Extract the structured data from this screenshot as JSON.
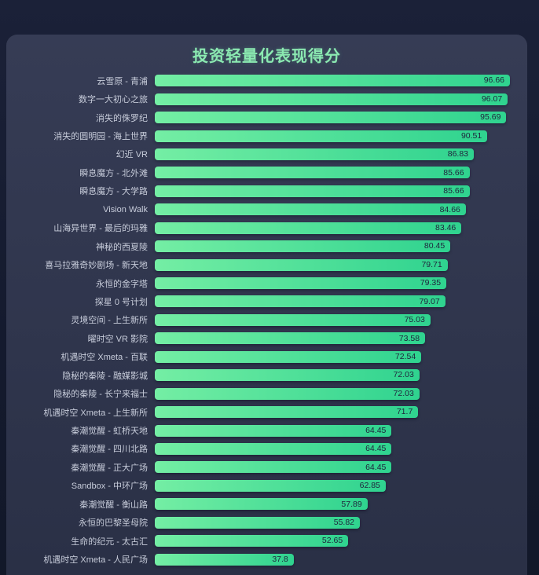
{
  "page": {
    "title": "投资轻量化表现得分"
  },
  "colors": {
    "outer_bg": "#141a2e",
    "panel_bg_top": "#363c55",
    "panel_bg_bottom": "#2a3046",
    "title_color": "#8be9b1",
    "bar_start": "#74eea4",
    "bar_end": "#2fd38f",
    "label_color": "#c7ccda",
    "value_color": "#20263d"
  },
  "chart_data": {
    "type": "bar",
    "orientation": "horizontal",
    "title": "投资轻量化表现得分",
    "xlabel": "",
    "ylabel": "",
    "xlim": [
      0,
      100
    ],
    "grid": false,
    "legend": false,
    "axis_visible": false,
    "value_label_position": "inside-right",
    "sort_order": "descending",
    "categories": [
      "云雪原 - 青浦",
      "数字一大初心之旅",
      "消失的侏罗纪",
      "消失的圆明园 - 海上世界",
      "幻近 VR",
      "瞬息魔方 - 北外滩",
      "瞬息魔方 - 大学路",
      "Vision Walk",
      "山海异世界 - 最后的玛雅",
      "神秘的西夏陵",
      "喜马拉雅奇妙剧场 - 新天地",
      "永恒的金字塔",
      "探星 0 号计划",
      "灵境空间 - 上生新所",
      "曜时空 VR 影院",
      "机遇时空 Xmeta - 百联",
      "隐秘的秦陵 - 融媒影城",
      "隐秘的秦陵 - 长宁来福士",
      "机遇时空 Xmeta - 上生新所",
      "秦潮觉醒 - 虹桥天地",
      "秦潮觉醒 - 四川北路",
      "秦潮觉醒 - 正大广场",
      "Sandbox - 中环广场",
      "秦潮觉醒 - 衡山路",
      "永恒的巴黎圣母院",
      "生命的纪元 - 太古汇",
      "机遇时空 Xmeta - 人民广场"
    ],
    "values": [
      96.66,
      96.07,
      95.69,
      90.51,
      86.83,
      85.66,
      85.66,
      84.66,
      83.46,
      80.45,
      79.71,
      79.35,
      79.07,
      75.03,
      73.58,
      72.54,
      72.03,
      72.03,
      71.7,
      64.45,
      64.45,
      64.45,
      62.85,
      57.89,
      55.82,
      52.65,
      37.8
    ]
  }
}
